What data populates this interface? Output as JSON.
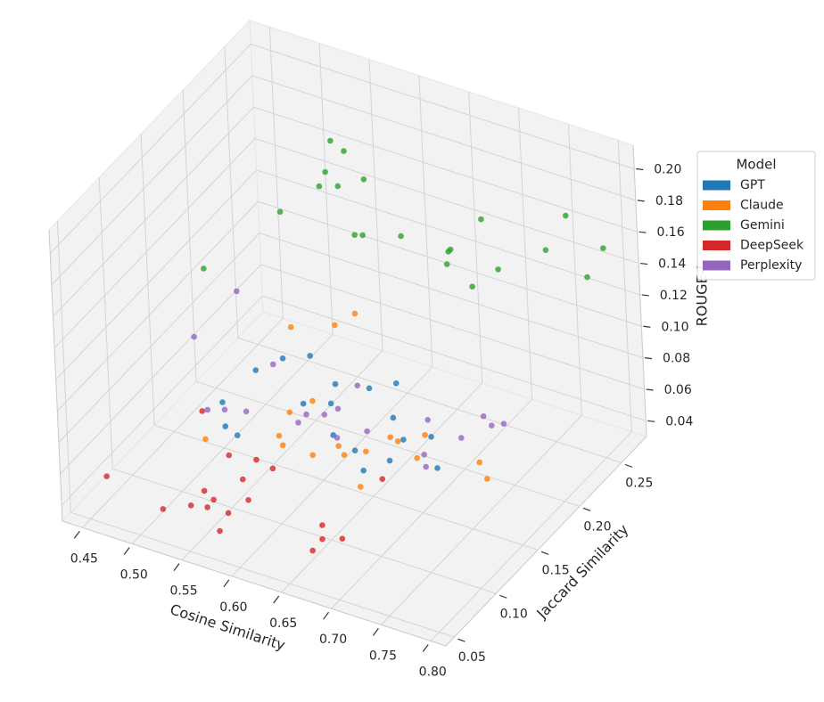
{
  "chart_data": {
    "type": "scatter3d",
    "xlabel": "Cosine Similarity",
    "ylabel": "Jaccard Similarity",
    "zlabel": "ROUGE-L",
    "xlim": [
      0.43,
      0.815
    ],
    "ylim": [
      0.04,
      0.28
    ],
    "zlim": [
      0.03,
      0.215
    ],
    "xticks": [
      0.45,
      {
        "value": 0.5,
        "label": "0.50"
      },
      0.55,
      {
        "value": 0.6,
        "label": "0.60"
      },
      0.65,
      {
        "value": 0.7,
        "label": "0.70"
      },
      0.75,
      {
        "value": 0.8,
        "label": "0.80"
      }
    ],
    "yticks": [
      0.05,
      {
        "value": 0.1,
        "label": "0.10"
      },
      0.15,
      {
        "value": 0.2,
        "label": "0.20"
      },
      0.25
    ],
    "zticks": [
      0.04,
      0.06,
      0.08,
      {
        "value": 0.1,
        "label": "0.10"
      },
      0.12,
      0.14,
      0.16,
      0.18,
      {
        "value": 0.2,
        "label": "0.20"
      }
    ],
    "grid": true,
    "legend_title": "Model",
    "legend_position": "upper right",
    "series": [
      {
        "name": "GPT",
        "color": "#1f77b4",
        "x": [
          0.535,
          0.547,
          0.566,
          0.594,
          0.623,
          0.64,
          0.521,
          0.573,
          0.594,
          0.53,
          0.541,
          0.619,
          0.636,
          0.65,
          0.67,
          0.663,
          0.676,
          0.7,
          0.712
        ],
        "y": [
          0.151,
          0.169,
          0.179,
          0.175,
          0.181,
          0.193,
          0.127,
          0.161,
          0.169,
          0.119,
          0.12,
          0.142,
          0.147,
          0.14,
          0.148,
          0.162,
          0.158,
          0.163,
          0.155
        ],
        "z": [
          0.086,
          0.086,
          0.086,
          0.076,
          0.076,
          0.076,
          0.076,
          0.067,
          0.067,
          0.067,
          0.063,
          0.067,
          0.058,
          0.052,
          0.058,
          0.076,
          0.067,
          0.071,
          0.058
        ]
      },
      {
        "name": "Claude",
        "color": "#ff7f0e",
        "x": [
          0.563,
          0.589,
          0.602,
          0.578,
          0.564,
          0.535,
          0.577,
          0.578,
          0.631,
          0.607,
          0.631,
          0.656,
          0.669,
          0.7,
          0.689,
          0.656,
          0.74,
          0.747,
          0.673
        ],
        "y": [
          0.162,
          0.183,
          0.192,
          0.166,
          0.155,
          0.09,
          0.131,
          0.126,
          0.134,
          0.131,
          0.14,
          0.137,
          0.151,
          0.156,
          0.158,
          0.129,
          0.172,
          0.172,
          0.155
        ],
        "z": [
          0.113,
          0.108,
          0.113,
          0.067,
          0.063,
          0.076,
          0.058,
          0.067,
          0.067,
          0.058,
          0.058,
          0.067,
          0.071,
          0.076,
          0.058,
          0.049,
          0.058,
          0.049,
          0.067
        ]
      },
      {
        "name": "Gemini",
        "color": "#2ca02c",
        "x": [
          0.569,
          0.576,
          0.565,
          0.56,
          0.579,
          0.612,
          0.527,
          0.618,
          0.611,
          0.641,
          0.719,
          0.775,
          0.673,
          0.685,
          0.675,
          0.762,
          0.801,
          0.718,
          0.706,
          0.787,
          0.492
        ],
        "y": [
          0.21,
          0.217,
          0.207,
          0.205,
          0.205,
          0.198,
          0.196,
          0.178,
          0.195,
          0.205,
          0.21,
          0.244,
          0.225,
          0.209,
          0.218,
          0.234,
          0.256,
          0.228,
          0.211,
          0.252,
          0.145
        ],
        "z": [
          0.206,
          0.197,
          0.187,
          0.178,
          0.182,
          0.197,
          0.16,
          0.174,
          0.163,
          0.163,
          0.187,
          0.182,
          0.15,
          0.16,
          0.145,
          0.163,
          0.16,
          0.145,
          0.141,
          0.141,
          0.145
        ]
      },
      {
        "name": "DeepSeek",
        "color": "#d62728",
        "x": [
          0.454,
          0.509,
          0.535,
          0.549,
          0.553,
          0.543,
          0.562,
          0.565,
          0.575,
          0.564,
          0.543,
          0.56,
          0.579,
          0.524,
          0.648,
          0.653,
          0.65,
          0.668,
          0.667
        ],
        "y": [
          0.066,
          0.067,
          0.07,
          0.073,
          0.076,
          0.077,
          0.082,
          0.068,
          0.091,
          0.098,
          0.107,
          0.119,
          0.116,
          0.1,
          0.08,
          0.086,
          0.09,
          0.092,
          0.142
        ],
        "z": [
          0.049,
          0.039,
          0.045,
          0.045,
          0.049,
          0.052,
          0.039,
          0.036,
          0.045,
          0.052,
          0.058,
          0.052,
          0.052,
          0.086,
          0.034,
          0.039,
          0.045,
          0.039,
          0.049
        ]
      },
      {
        "name": "Perplexity",
        "color": "#9467bd",
        "x": [
          0.529,
          0.496,
          0.544,
          0.612,
          0.509,
          0.522,
          0.535,
          0.583,
          0.588,
          0.602,
          0.608,
          0.613,
          0.642,
          0.692,
          0.695,
          0.691,
          0.719,
          0.731,
          0.738,
          0.746
        ],
        "y": [
          0.14,
          0.126,
          0.161,
          0.18,
          0.123,
          0.128,
          0.138,
          0.143,
          0.147,
          0.152,
          0.161,
          0.153,
          0.155,
          0.163,
          0.161,
          0.17,
          0.176,
          0.189,
          0.19,
          0.195
        ],
        "z": [
          0.141,
          0.113,
          0.086,
          0.076,
          0.071,
          0.071,
          0.067,
          0.067,
          0.071,
          0.071,
          0.071,
          0.058,
          0.067,
          0.058,
          0.052,
          0.076,
          0.067,
          0.076,
          0.071,
          0.071
        ]
      }
    ]
  }
}
